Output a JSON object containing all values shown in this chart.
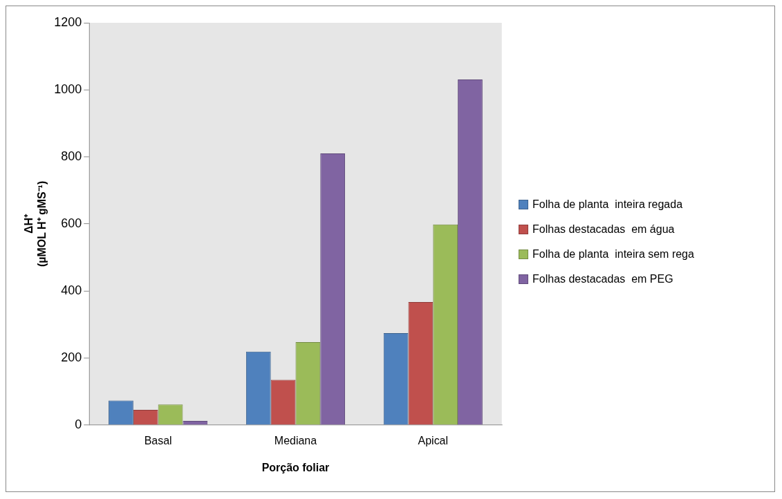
{
  "chart_data": {
    "type": "bar",
    "xlabel": "Porção foliar",
    "ylabel": "ΔH⁺\n(µMOL H⁺ gMS⁻¹)",
    "categories": [
      "Basal",
      "Mediana",
      "Apical"
    ],
    "series": [
      {
        "name": "Folha de planta  inteira regada",
        "color": "#4f81bd",
        "values": [
          73,
          219,
          274
        ]
      },
      {
        "name": "Folhas destacadas  em água",
        "color": "#c0504d",
        "values": [
          45,
          135,
          367
        ]
      },
      {
        "name": "Folha de planta  inteira sem rega",
        "color": "#9bbb59",
        "values": [
          61,
          247,
          598
        ]
      },
      {
        "name": "Folhas destacadas  em PEG",
        "color": "#8064a2",
        "values": [
          12,
          810,
          1031
        ]
      }
    ],
    "ylim": [
      0,
      1200
    ],
    "yticks": [
      0,
      200,
      400,
      600,
      800,
      1000,
      1200
    ],
    "grid": false,
    "legend": "right"
  }
}
